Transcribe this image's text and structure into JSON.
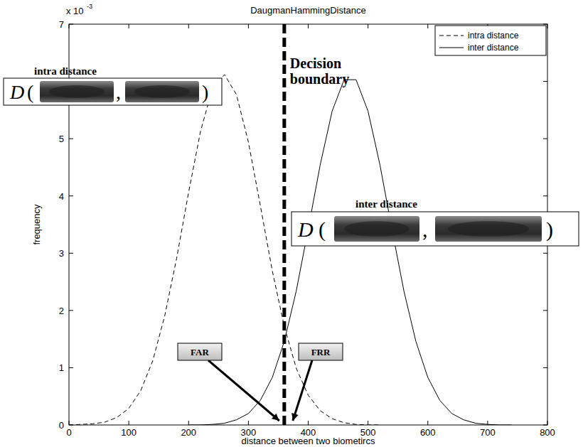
{
  "chart_data": {
    "type": "line",
    "title": "DaugmanHammingDistance",
    "x_label": "distance between two biometircs",
    "y_label": "frequency",
    "y_multiplier": {
      "base": "x 10",
      "exponent": "-3"
    },
    "xlim": [
      0,
      800
    ],
    "xticks": [
      0,
      100,
      200,
      300,
      400,
      500,
      600,
      700,
      800
    ],
    "ylim": [
      0,
      7
    ],
    "yticks": [
      0,
      1,
      2,
      3,
      4,
      5,
      6,
      7
    ],
    "grid": false,
    "legend": "top-right",
    "x": [
      0,
      20,
      40,
      60,
      80,
      100,
      120,
      140,
      160,
      180,
      200,
      220,
      240,
      260,
      280,
      300,
      320,
      340,
      360,
      380,
      400,
      420,
      440,
      460,
      480,
      500,
      520,
      540,
      560,
      580,
      600,
      620,
      640,
      660,
      680,
      700,
      720,
      740,
      760,
      780,
      800
    ],
    "series": [
      {
        "name": "intra distance",
        "color": "#000000",
        "line_style": "dashed",
        "values": [
          0,
          0.01,
          0.02,
          0.05,
          0.13,
          0.29,
          0.6,
          1.12,
          1.9,
          2.91,
          4.06,
          5.13,
          5.88,
          6.12,
          5.77,
          4.94,
          3.83,
          2.69,
          1.72,
          0.99,
          0.52,
          0.25,
          0.11,
          0.04,
          0.01,
          0,
          0,
          null,
          null,
          null,
          null,
          null,
          null,
          null,
          null,
          null,
          null,
          null,
          null,
          null,
          null
        ]
      },
      {
        "name": "inter distance",
        "color": "#000000",
        "line_style": "solid",
        "values": [
          null,
          null,
          null,
          null,
          null,
          null,
          null,
          null,
          null,
          null,
          0,
          0,
          0.01,
          0.03,
          0.09,
          0.2,
          0.43,
          0.83,
          1.46,
          2.34,
          3.42,
          4.54,
          5.48,
          6.03,
          6.03,
          5.48,
          4.54,
          3.42,
          2.34,
          1.46,
          0.83,
          0.43,
          0.2,
          0.09,
          0.03,
          0.01,
          0,
          0,
          null,
          null,
          null
        ]
      }
    ],
    "decision_boundary": {
      "label": [
        "Decision",
        "boundary"
      ],
      "value": 360
    },
    "annotations": [
      "FAR",
      "FRR"
    ],
    "insets": [
      {
        "title": "intra distance",
        "function": "D",
        "open": "(",
        "separator": ",",
        "close": ")"
      },
      {
        "title": "inter distance",
        "function": "D",
        "open": "(",
        "separator": ",",
        "close": ")"
      }
    ]
  }
}
